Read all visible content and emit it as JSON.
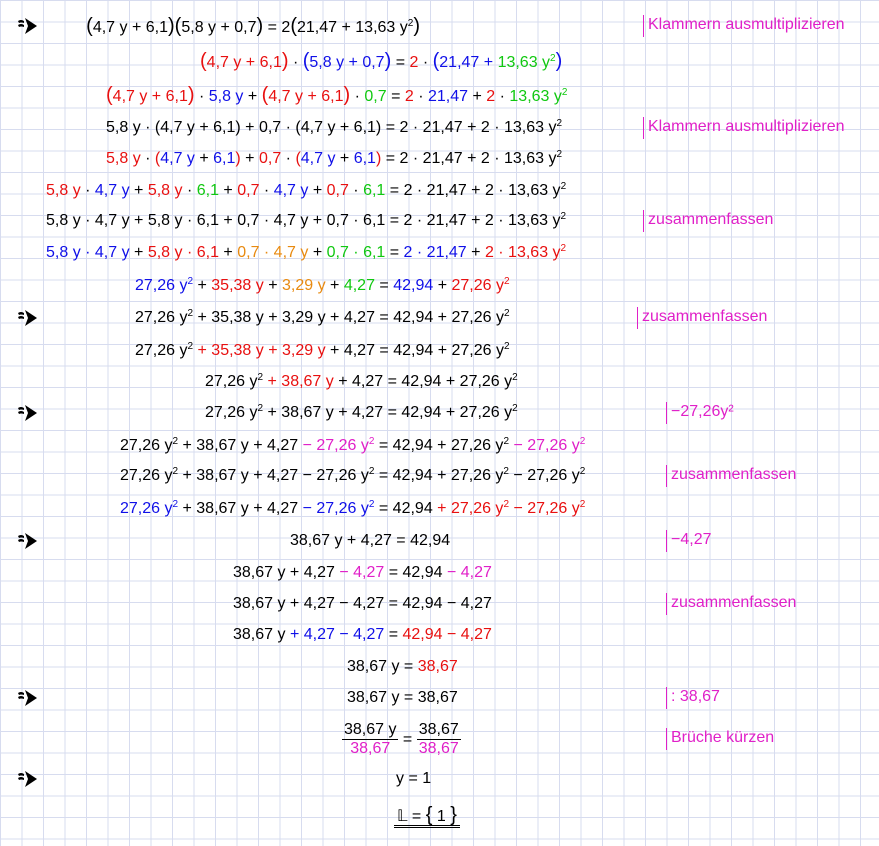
{
  "annotations": {
    "expand": "Klammern ausmultiplizieren",
    "combine": "zusammenfassen",
    "minus_y2": "−27,26y²",
    "minus_const": "−4,27",
    "divide": ": 38,67",
    "cancel": "Brüche kürzen"
  },
  "icons": {
    "step_marker": "arrow-pointer-icon"
  },
  "colors": {
    "red": "#e81010",
    "blue": "#1010e8",
    "green": "#10c810",
    "orange": "#e88a10",
    "magenta": "#e020c8",
    "grid": "#d7dcef"
  }
}
